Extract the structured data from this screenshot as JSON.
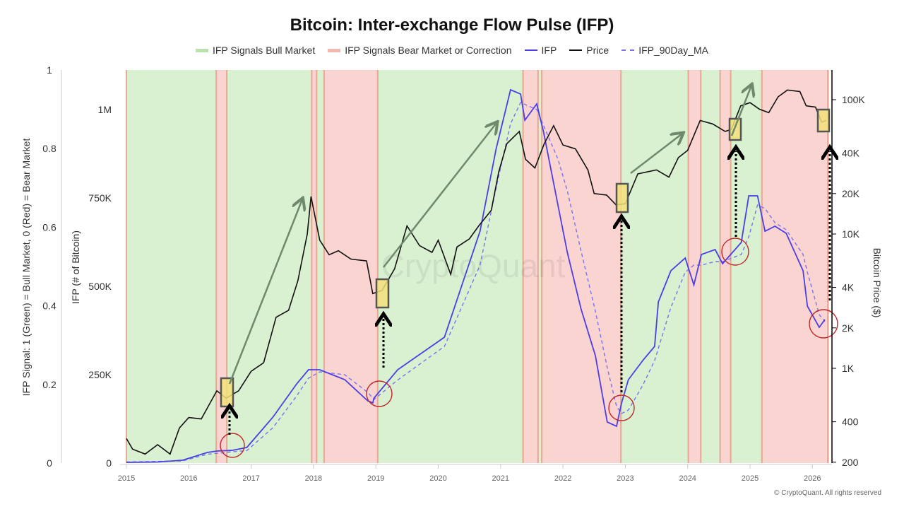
{
  "chart_data": {
    "type": "line",
    "title": "Bitcoin: Inter-exchange Flow Pulse (IFP)",
    "legend": {
      "placement": "top-center",
      "entries": [
        {
          "label": "IFP Signals Bull Market",
          "color": "#b9e2ae"
        },
        {
          "label": "IFP Signals Bear Market or Correction",
          "color": "#f4b7b0"
        },
        {
          "label": "IFP",
          "color": "#4b3ee6"
        },
        {
          "label": "Price",
          "color": "#111111"
        },
        {
          "label": "IFP_90Day_MA",
          "color": "#7b72ee",
          "style": "dashed"
        }
      ]
    },
    "x_axis": {
      "ticks": [
        "2015",
        "2016",
        "2017",
        "2018",
        "2019",
        "2020",
        "2021",
        "2022",
        "2023",
        "2024",
        "2025",
        "2026"
      ],
      "range": [
        2015,
        2026.3
      ]
    },
    "y_axis_signal": {
      "label": "IFP Signal: 1 (Green) = Bull Market, 0 (Red) = Bear Market",
      "ticks": [
        "0",
        "0.2",
        "0.4",
        "0.6",
        "0.8",
        "1"
      ],
      "range": [
        0,
        1
      ]
    },
    "y_axis_ifp": {
      "label": "IFP (# of Bitcoin)",
      "ticks": [
        "0",
        "250K",
        "500K",
        "750K",
        "1M"
      ],
      "range": [
        0,
        1100000
      ]
    },
    "y_axis_price": {
      "label": "Bitcoin Price ($)",
      "scale": "log",
      "ticks": [
        "200",
        "400",
        "1K",
        "2K",
        "4K",
        "10K",
        "20K",
        "40K",
        "100K"
      ]
    },
    "signal_bands": [
      {
        "start": 2015.0,
        "end": 2016.44,
        "signal": 1
      },
      {
        "start": 2016.44,
        "end": 2016.61,
        "signal": 0
      },
      {
        "start": 2016.61,
        "end": 2017.97,
        "signal": 1
      },
      {
        "start": 2017.97,
        "end": 2018.05,
        "signal": 0
      },
      {
        "start": 2018.05,
        "end": 2018.17,
        "signal": 1
      },
      {
        "start": 2018.17,
        "end": 2019.03,
        "signal": 0
      },
      {
        "start": 2019.03,
        "end": 2021.36,
        "signal": 1
      },
      {
        "start": 2021.36,
        "end": 2021.6,
        "signal": 0
      },
      {
        "start": 2021.6,
        "end": 2021.66,
        "signal": 1
      },
      {
        "start": 2021.66,
        "end": 2022.93,
        "signal": 0
      },
      {
        "start": 2022.93,
        "end": 2024.01,
        "signal": 1
      },
      {
        "start": 2024.01,
        "end": 2024.21,
        "signal": 0
      },
      {
        "start": 2024.21,
        "end": 2024.52,
        "signal": 1
      },
      {
        "start": 2024.52,
        "end": 2024.69,
        "signal": 0
      },
      {
        "start": 2024.69,
        "end": 2025.19,
        "signal": 1
      },
      {
        "start": 2025.19,
        "end": 2026.25,
        "signal": 0
      }
    ],
    "series": [
      {
        "name": "Price",
        "points": [
          [
            2015.0,
            300
          ],
          [
            2015.1,
            250
          ],
          [
            2015.3,
            230
          ],
          [
            2015.5,
            270
          ],
          [
            2015.7,
            230
          ],
          [
            2015.85,
            360
          ],
          [
            2016.0,
            430
          ],
          [
            2016.2,
            420
          ],
          [
            2016.45,
            680
          ],
          [
            2016.6,
            600
          ],
          [
            2016.8,
            680
          ],
          [
            2017.0,
            950
          ],
          [
            2017.2,
            1100
          ],
          [
            2017.4,
            2400
          ],
          [
            2017.6,
            2700
          ],
          [
            2017.75,
            4500
          ],
          [
            2017.9,
            10000
          ],
          [
            2017.96,
            19000
          ],
          [
            2018.1,
            9000
          ],
          [
            2018.25,
            7000
          ],
          [
            2018.4,
            7500
          ],
          [
            2018.6,
            6500
          ],
          [
            2018.85,
            6300
          ],
          [
            2018.95,
            3600
          ],
          [
            2019.1,
            3800
          ],
          [
            2019.3,
            5500
          ],
          [
            2019.5,
            11500
          ],
          [
            2019.7,
            8200
          ],
          [
            2019.9,
            7300
          ],
          [
            2020.0,
            9000
          ],
          [
            2020.2,
            5000
          ],
          [
            2020.3,
            8000
          ],
          [
            2020.5,
            9200
          ],
          [
            2020.65,
            11500
          ],
          [
            2020.85,
            15000
          ],
          [
            2020.97,
            29000
          ],
          [
            2021.1,
            47000
          ],
          [
            2021.3,
            58000
          ],
          [
            2021.4,
            36000
          ],
          [
            2021.55,
            31000
          ],
          [
            2021.7,
            47000
          ],
          [
            2021.85,
            64000
          ],
          [
            2022.0,
            46000
          ],
          [
            2022.2,
            43000
          ],
          [
            2022.4,
            30000
          ],
          [
            2022.5,
            20000
          ],
          [
            2022.7,
            19500
          ],
          [
            2022.85,
            16500
          ],
          [
            2023.0,
            16800
          ],
          [
            2023.2,
            28000
          ],
          [
            2023.5,
            30000
          ],
          [
            2023.7,
            26500
          ],
          [
            2023.85,
            37000
          ],
          [
            2024.0,
            42000
          ],
          [
            2024.2,
            70000
          ],
          [
            2024.4,
            66000
          ],
          [
            2024.6,
            58000
          ],
          [
            2024.7,
            60000
          ],
          [
            2024.85,
            90000
          ],
          [
            2025.0,
            95000
          ],
          [
            2025.15,
            85000
          ],
          [
            2025.3,
            80000
          ],
          [
            2025.45,
            105000
          ],
          [
            2025.6,
            118000
          ],
          [
            2025.8,
            115000
          ],
          [
            2025.9,
            90000
          ],
          [
            2026.05,
            88000
          ],
          [
            2026.15,
            68000
          ],
          [
            2026.22,
            70000
          ]
        ]
      },
      {
        "name": "IFP",
        "points": [
          [
            2015.0,
            2000
          ],
          [
            2015.5,
            3000
          ],
          [
            2015.9,
            8000
          ],
          [
            2016.3,
            30000
          ],
          [
            2016.45,
            34000
          ],
          [
            2016.7,
            36000
          ],
          [
            2016.93,
            44000
          ],
          [
            2017.35,
            130000
          ],
          [
            2017.73,
            224000
          ],
          [
            2017.92,
            264000
          ],
          [
            2018.1,
            264000
          ],
          [
            2018.5,
            236000
          ],
          [
            2018.87,
            176000
          ],
          [
            2018.95,
            170000
          ],
          [
            2018.97,
            184000
          ],
          [
            2019.35,
            264000
          ],
          [
            2020.1,
            356000
          ],
          [
            2020.67,
            656000
          ],
          [
            2020.93,
            890000
          ],
          [
            2021.16,
            1056000
          ],
          [
            2021.32,
            1044000
          ],
          [
            2021.39,
            970000
          ],
          [
            2021.58,
            1016000
          ],
          [
            2021.69,
            936000
          ],
          [
            2021.92,
            730000
          ],
          [
            2022.07,
            596000
          ],
          [
            2022.29,
            436000
          ],
          [
            2022.52,
            304000
          ],
          [
            2022.71,
            116000
          ],
          [
            2022.86,
            104000
          ],
          [
            2022.94,
            170000
          ],
          [
            2023.05,
            236000
          ],
          [
            2023.28,
            290000
          ],
          [
            2023.47,
            330000
          ],
          [
            2023.53,
            456000
          ],
          [
            2023.73,
            544000
          ],
          [
            2023.96,
            580000
          ],
          [
            2024.1,
            504000
          ],
          [
            2024.22,
            590000
          ],
          [
            2024.44,
            604000
          ],
          [
            2024.56,
            564000
          ],
          [
            2024.86,
            624000
          ],
          [
            2024.98,
            756000
          ],
          [
            2025.12,
            756000
          ],
          [
            2025.24,
            656000
          ],
          [
            2025.4,
            670000
          ],
          [
            2025.58,
            650000
          ],
          [
            2025.85,
            544000
          ],
          [
            2025.92,
            444000
          ],
          [
            2026.11,
            384000
          ],
          [
            2026.2,
            406000
          ]
        ]
      },
      {
        "name": "IFP_90Day_MA",
        "points": [
          [
            2015.0,
            3000
          ],
          [
            2015.9,
            6000
          ],
          [
            2016.3,
            25000
          ],
          [
            2016.7,
            32000
          ],
          [
            2016.93,
            35000
          ],
          [
            2017.35,
            100000
          ],
          [
            2017.73,
            190000
          ],
          [
            2017.92,
            240000
          ],
          [
            2018.1,
            258000
          ],
          [
            2018.5,
            250000
          ],
          [
            2018.87,
            200000
          ],
          [
            2018.97,
            180000
          ],
          [
            2019.35,
            235000
          ],
          [
            2020.1,
            330000
          ],
          [
            2020.67,
            560000
          ],
          [
            2020.93,
            780000
          ],
          [
            2021.16,
            960000
          ],
          [
            2021.32,
            1020000
          ],
          [
            2021.58,
            1000000
          ],
          [
            2021.92,
            860000
          ],
          [
            2022.07,
            770000
          ],
          [
            2022.29,
            600000
          ],
          [
            2022.52,
            430000
          ],
          [
            2022.71,
            270000
          ],
          [
            2022.86,
            160000
          ],
          [
            2022.94,
            140000
          ],
          [
            2023.05,
            150000
          ],
          [
            2023.28,
            220000
          ],
          [
            2023.47,
            290000
          ],
          [
            2023.73,
            440000
          ],
          [
            2023.96,
            540000
          ],
          [
            2024.1,
            560000
          ],
          [
            2024.22,
            560000
          ],
          [
            2024.44,
            570000
          ],
          [
            2024.56,
            570000
          ],
          [
            2024.86,
            590000
          ],
          [
            2024.98,
            640000
          ],
          [
            2025.12,
            730000
          ],
          [
            2025.24,
            720000
          ],
          [
            2025.4,
            680000
          ],
          [
            2025.58,
            660000
          ],
          [
            2025.85,
            590000
          ],
          [
            2025.92,
            540000
          ],
          [
            2026.11,
            420000
          ],
          [
            2026.2,
            400000
          ]
        ]
      }
    ],
    "watermark": "CryptoQuant"
  },
  "footer": {
    "copyright": "© CryptoQuant. All rights reserved"
  }
}
